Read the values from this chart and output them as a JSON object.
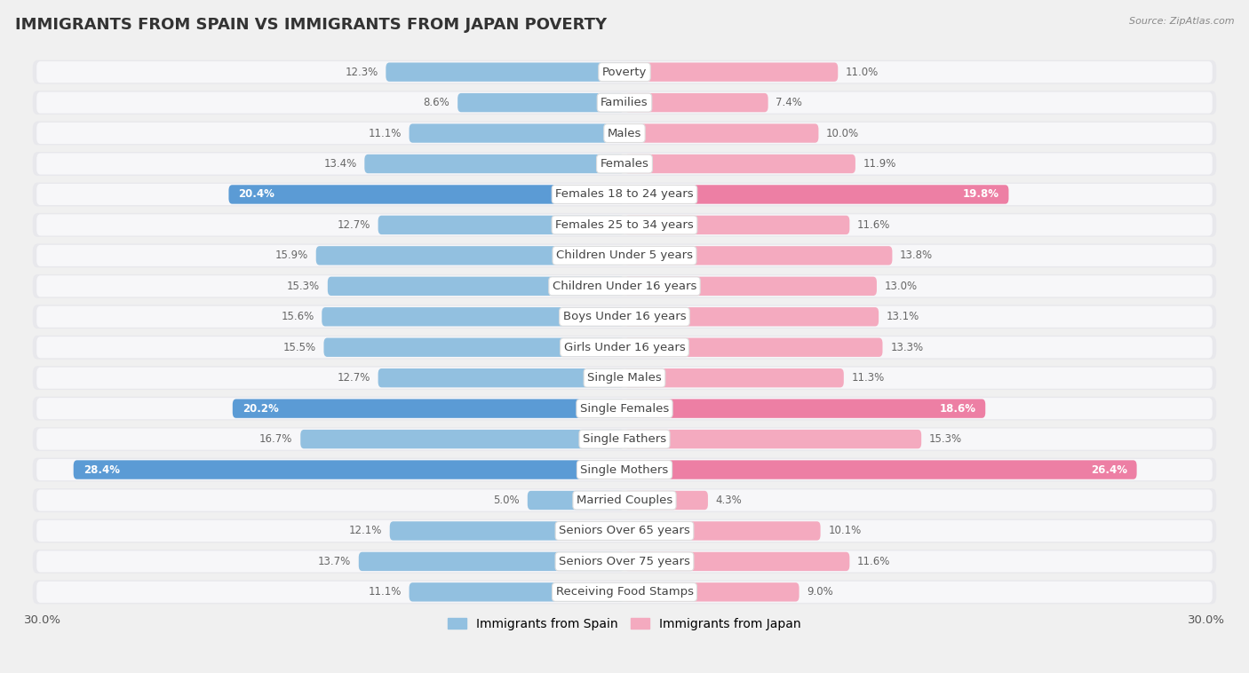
{
  "title": "IMMIGRANTS FROM SPAIN VS IMMIGRANTS FROM JAPAN POVERTY",
  "source": "Source: ZipAtlas.com",
  "categories": [
    "Poverty",
    "Families",
    "Males",
    "Females",
    "Females 18 to 24 years",
    "Females 25 to 34 years",
    "Children Under 5 years",
    "Children Under 16 years",
    "Boys Under 16 years",
    "Girls Under 16 years",
    "Single Males",
    "Single Females",
    "Single Fathers",
    "Single Mothers",
    "Married Couples",
    "Seniors Over 65 years",
    "Seniors Over 75 years",
    "Receiving Food Stamps"
  ],
  "spain_values": [
    12.3,
    8.6,
    11.1,
    13.4,
    20.4,
    12.7,
    15.9,
    15.3,
    15.6,
    15.5,
    12.7,
    20.2,
    16.7,
    28.4,
    5.0,
    12.1,
    13.7,
    11.1
  ],
  "japan_values": [
    11.0,
    7.4,
    10.0,
    11.9,
    19.8,
    11.6,
    13.8,
    13.0,
    13.1,
    13.3,
    11.3,
    18.6,
    15.3,
    26.4,
    4.3,
    10.1,
    11.6,
    9.0
  ],
  "spain_color": "#92C0E0",
  "japan_color": "#F4AABF",
  "spain_highlight_color": "#5B9BD5",
  "japan_highlight_color": "#ED7FA4",
  "highlight_rows": [
    4,
    11,
    13
  ],
  "xlim": 30.0,
  "bar_height": 0.62,
  "bg_color": "#f0f0f0",
  "row_bg_color": "#e8e8ec",
  "row_inner_color": "#f7f7f9",
  "legend_spain": "Immigrants from Spain",
  "legend_japan": "Immigrants from Japan",
  "axis_label_left": "30.0%",
  "axis_label_right": "30.0%",
  "label_fontsize": 8.5,
  "cat_fontsize": 9.5,
  "title_fontsize": 13
}
